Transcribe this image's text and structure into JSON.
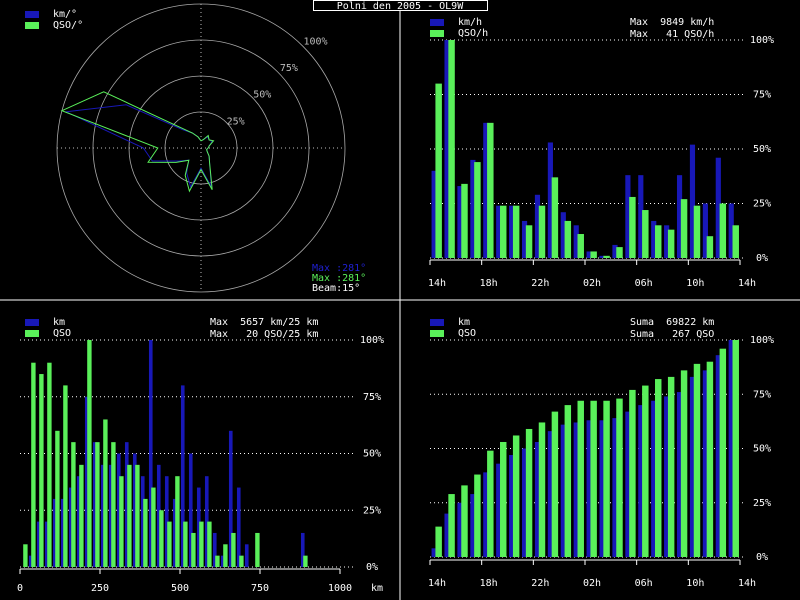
{
  "title": "Polni den 2005 - OL9W",
  "chart_data": [
    {
      "type": "polar",
      "theta": [
        0,
        15,
        30,
        45,
        60,
        75,
        90,
        105,
        120,
        135,
        150,
        165,
        180,
        195,
        210,
        225,
        240,
        255,
        270,
        285,
        300,
        315,
        330,
        345
      ],
      "rlim": [
        0,
        100
      ],
      "rticks": [
        {
          "value": 25,
          "label": "25%"
        },
        {
          "value": 50,
          "label": "50%"
        },
        {
          "value": 75,
          "label": "75%"
        },
        {
          "value": 100,
          "label": "100%"
        }
      ],
      "series": [
        {
          "name": "km/°",
          "color": "#1818b8",
          "values": [
            5,
            6,
            9,
            8,
            9,
            6,
            5,
            4,
            5,
            8,
            12,
            28,
            14,
            28,
            20,
            12,
            18,
            35,
            40,
            97,
            60,
            18,
            12,
            8
          ]
        },
        {
          "name": "QSO/°",
          "color": "#5af05a",
          "values": [
            5,
            6,
            10,
            8,
            10,
            6,
            5,
            4,
            5,
            8,
            12,
            30,
            15,
            31,
            22,
            12,
            20,
            38,
            30,
            100,
            78,
            20,
            12,
            8
          ]
        }
      ],
      "annotations": [
        {
          "text": "Max :281°",
          "color": "#2020d0"
        },
        {
          "text": "Max :281°",
          "color": "#5af05a"
        },
        {
          "text": "Beam:15°",
          "color": "#ffffff"
        }
      ]
    },
    {
      "type": "bar",
      "x": [
        0,
        1,
        2,
        3,
        4,
        5,
        6,
        7,
        8,
        9,
        10,
        11,
        12,
        13,
        14,
        15,
        16,
        17,
        18,
        19,
        20,
        21,
        22,
        23
      ],
      "xlim": [
        0,
        24
      ],
      "xticks": [
        {
          "value": 0,
          "label": "14h"
        },
        {
          "value": 4,
          "label": "18h"
        },
        {
          "value": 8,
          "label": "22h"
        },
        {
          "value": 12,
          "label": "02h"
        },
        {
          "value": 16,
          "label": "06h"
        },
        {
          "value": 20,
          "label": "10h"
        },
        {
          "value": 24,
          "label": "14h"
        }
      ],
      "ylim": [
        0,
        100
      ],
      "yticks": [
        {
          "value": 0,
          "label": "0%"
        },
        {
          "value": 25,
          "label": "25%"
        },
        {
          "value": 50,
          "label": "50%"
        },
        {
          "value": 75,
          "label": "75%"
        },
        {
          "value": 100,
          "label": "100%"
        }
      ],
      "grid": true,
      "series": [
        {
          "name": "km/h",
          "color": "#1818b8",
          "values": [
            40,
            100,
            33,
            45,
            62,
            24,
            24,
            17,
            29,
            53,
            21,
            15,
            3,
            1,
            6,
            38,
            38,
            17,
            15,
            38,
            52,
            25,
            46,
            25
          ]
        },
        {
          "name": "QSO/h",
          "color": "#5af05a",
          "values": [
            80,
            100,
            34,
            44,
            62,
            24,
            24,
            15,
            24,
            37,
            17,
            11,
            3,
            1,
            5,
            28,
            22,
            15,
            13,
            27,
            24,
            10,
            25,
            15
          ]
        }
      ],
      "annotations": [
        "Max  9849 km/h",
        "Max   41 QSO/h"
      ]
    },
    {
      "type": "histogram",
      "bins": [
        0,
        25,
        50,
        75,
        100,
        125,
        150,
        175,
        200,
        225,
        250,
        275,
        300,
        325,
        350,
        375,
        400,
        425,
        450,
        475,
        500,
        525,
        550,
        575,
        600,
        625,
        650,
        675,
        700,
        725,
        750,
        775,
        800,
        825,
        850,
        875,
        900,
        925,
        950,
        975,
        1000
      ],
      "xlim": [
        0,
        1000
      ],
      "xticks": [
        0,
        250,
        500,
        750,
        1000
      ],
      "xlabel": "km",
      "ylim": [
        0,
        100
      ],
      "yticks": [
        {
          "value": 0,
          "label": "0%"
        },
        {
          "value": 25,
          "label": "25%"
        },
        {
          "value": 50,
          "label": "50%"
        },
        {
          "value": 75,
          "label": "75%"
        },
        {
          "value": 100,
          "label": "100%"
        }
      ],
      "grid": true,
      "series": [
        {
          "name": "km",
          "color": "#1818b8",
          "values": [
            0,
            5,
            20,
            20,
            30,
            30,
            35,
            40,
            75,
            55,
            45,
            45,
            50,
            55,
            50,
            40,
            100,
            45,
            40,
            30,
            80,
            50,
            35,
            40,
            15,
            5,
            60,
            35,
            10,
            0,
            0,
            0,
            0,
            0,
            0,
            15,
            0,
            0,
            0,
            0
          ]
        },
        {
          "name": "QSO",
          "color": "#5af05a",
          "values": [
            10,
            90,
            85,
            90,
            60,
            80,
            55,
            45,
            100,
            55,
            65,
            55,
            40,
            45,
            45,
            30,
            35,
            25,
            20,
            40,
            20,
            15,
            20,
            20,
            5,
            10,
            15,
            5,
            0,
            15,
            0,
            0,
            0,
            0,
            0,
            5,
            0,
            0,
            0,
            0
          ]
        }
      ],
      "annotations": [
        "Max  5657 km/25 km",
        "Max   20 QSO/25 km"
      ]
    },
    {
      "type": "bar",
      "x": [
        0,
        1,
        2,
        3,
        4,
        5,
        6,
        7,
        8,
        9,
        10,
        11,
        12,
        13,
        14,
        15,
        16,
        17,
        18,
        19,
        20,
        21,
        22,
        23
      ],
      "xlim": [
        0,
        24
      ],
      "xticks": [
        {
          "value": 0,
          "label": "14h"
        },
        {
          "value": 4,
          "label": "18h"
        },
        {
          "value": 8,
          "label": "22h"
        },
        {
          "value": 12,
          "label": "02h"
        },
        {
          "value": 16,
          "label": "06h"
        },
        {
          "value": 20,
          "label": "10h"
        },
        {
          "value": 24,
          "label": "14h"
        }
      ],
      "ylim": [
        0,
        100
      ],
      "yticks": [
        {
          "value": 0,
          "label": "0%"
        },
        {
          "value": 25,
          "label": "25%"
        },
        {
          "value": 50,
          "label": "50%"
        },
        {
          "value": 75,
          "label": "75%"
        },
        {
          "value": 100,
          "label": "100%"
        }
      ],
      "grid": true,
      "series": [
        {
          "name": "km",
          "color": "#1818b8",
          "values": [
            4,
            20,
            25,
            29,
            39,
            43,
            47,
            50,
            53,
            58,
            61,
            62,
            63,
            63,
            64,
            67,
            70,
            72,
            74,
            76,
            83,
            86,
            93,
            100
          ]
        },
        {
          "name": "QSO",
          "color": "#5af05a",
          "values": [
            14,
            29,
            33,
            38,
            49,
            53,
            56,
            59,
            62,
            67,
            70,
            72,
            72,
            72,
            73,
            77,
            79,
            82,
            83,
            86,
            89,
            90,
            96,
            100
          ]
        }
      ],
      "annotations": [
        "Suma  69822 km",
        "Suma   267 QSO"
      ]
    }
  ]
}
